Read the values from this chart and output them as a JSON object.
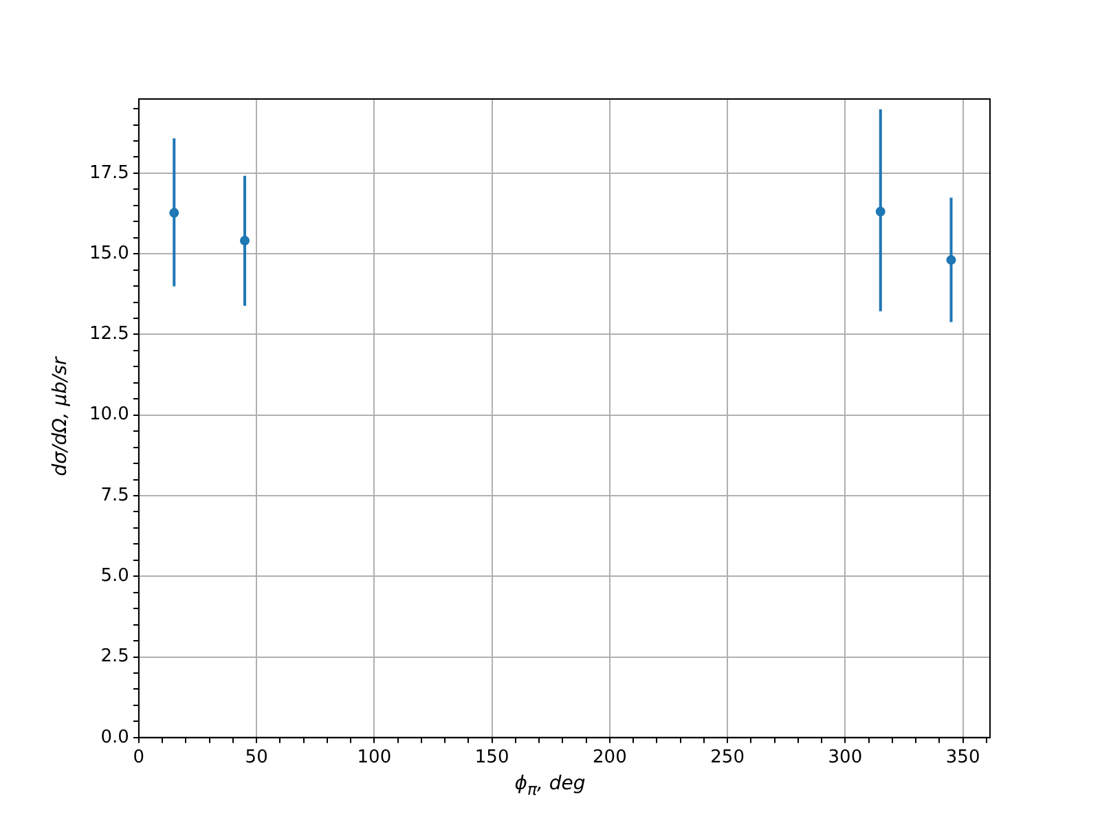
{
  "chart_data": {
    "type": "scatter",
    "xlabel": "ϕ$_{π}$, deg",
    "ylabel": "dσ/dΩ, μb/sr",
    "x": [
      15,
      45,
      315,
      345
    ],
    "series": [
      {
        "color": "#1f77b4",
        "values": [
          16.27,
          15.41,
          16.31,
          14.81
        ],
        "errors": [
          [
            13.99,
            18.58
          ],
          [
            13.39,
            17.42
          ],
          [
            13.22,
            19.48
          ],
          [
            12.88,
            16.74
          ]
        ]
      }
    ],
    "xlim": [
      0,
      361.5
    ],
    "ylim": [
      0,
      19.8
    ],
    "xticks": [
      0,
      {
        "value": 10,
        "label": null
      },
      {
        "value": 20,
        "label": null
      },
      {
        "value": 30,
        "label": null
      },
      {
        "value": 40,
        "label": null
      },
      50,
      {
        "value": 60,
        "label": null
      },
      {
        "value": 70,
        "label": null
      },
      {
        "value": 80,
        "label": null
      },
      {
        "value": 90,
        "label": null
      },
      100,
      {
        "value": 110,
        "label": null
      },
      {
        "value": 120,
        "label": null
      },
      {
        "value": 130,
        "label": null
      },
      {
        "value": 140,
        "label": null
      },
      150,
      {
        "value": 160,
        "label": null
      },
      {
        "value": 170,
        "label": null
      },
      {
        "value": 180,
        "label": null
      },
      {
        "value": 190,
        "label": null
      },
      200,
      {
        "value": 210,
        "label": null
      },
      {
        "value": 220,
        "label": null
      },
      {
        "value": 230,
        "label": null
      },
      {
        "value": 240,
        "label": null
      },
      250,
      {
        "value": 260,
        "label": null
      },
      {
        "value": 270,
        "label": null
      },
      {
        "value": 280,
        "label": null
      },
      {
        "value": 290,
        "label": null
      },
      300,
      {
        "value": 310,
        "label": null
      },
      {
        "value": 320,
        "label": null
      },
      {
        "value": 330,
        "label": null
      },
      {
        "value": 340,
        "label": null
      },
      350,
      {
        "value": 360,
        "label": null
      }
    ],
    "yticks": [
      {
        "value": 0,
        "label": "0.0"
      },
      {
        "value": 0.5,
        "label": null
      },
      {
        "value": 1,
        "label": null
      },
      {
        "value": 1.5,
        "label": null
      },
      {
        "value": 2,
        "label": null
      },
      {
        "value": 2.5,
        "label": "2.5"
      },
      {
        "value": 3,
        "label": null
      },
      {
        "value": 3.5,
        "label": null
      },
      {
        "value": 4,
        "label": null
      },
      {
        "value": 4.5,
        "label": null
      },
      {
        "value": 5,
        "label": "5.0"
      },
      {
        "value": 5.5,
        "label": null
      },
      {
        "value": 6,
        "label": null
      },
      {
        "value": 6.5,
        "label": null
      },
      {
        "value": 7,
        "label": null
      },
      {
        "value": 7.5,
        "label": "7.5"
      },
      {
        "value": 8,
        "label": null
      },
      {
        "value": 8.5,
        "label": null
      },
      {
        "value": 9,
        "label": null
      },
      {
        "value": 9.5,
        "label": null
      },
      {
        "value": 10,
        "label": "10.0"
      },
      {
        "value": 10.5,
        "label": null
      },
      {
        "value": 11,
        "label": null
      },
      {
        "value": 11.5,
        "label": null
      },
      {
        "value": 12,
        "label": null
      },
      {
        "value": 12.5,
        "label": "12.5"
      },
      {
        "value": 13,
        "label": null
      },
      {
        "value": 13.5,
        "label": null
      },
      {
        "value": 14,
        "label": null
      },
      {
        "value": 14.5,
        "label": null
      },
      {
        "value": 15,
        "label": "15.0"
      },
      {
        "value": 15.5,
        "label": null
      },
      {
        "value": 16,
        "label": null
      },
      {
        "value": 16.5,
        "label": null
      },
      {
        "value": 17,
        "label": null
      },
      {
        "value": 17.5,
        "label": "17.5"
      },
      {
        "value": 18,
        "label": null
      },
      {
        "value": 18.5,
        "label": null
      },
      {
        "value": 19,
        "label": null
      },
      {
        "value": 19.5,
        "label": null
      }
    ],
    "grid": true,
    "marker": "circle",
    "legend": false
  }
}
